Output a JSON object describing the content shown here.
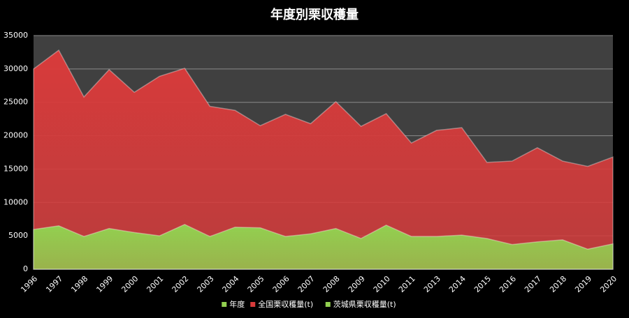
{
  "chart_data": {
    "type": "area",
    "title": "年度別栗収穫量",
    "categories": [
      "1996",
      "1997",
      "1998",
      "1999",
      "2000",
      "2001",
      "2002",
      "2003",
      "2004",
      "2005",
      "2006",
      "2007",
      "2008",
      "2009",
      "2010",
      "2011",
      "2013",
      "2014",
      "2015",
      "2016",
      "2017",
      "2018",
      "2019",
      "2020"
    ],
    "series": [
      {
        "name": "年度",
        "color": "#92d050",
        "values": [
          null,
          null,
          null,
          null,
          null,
          null,
          null,
          null,
          null,
          null,
          null,
          null,
          null,
          null,
          null,
          null,
          null,
          null,
          null,
          null,
          null,
          null,
          null,
          null
        ]
      },
      {
        "name": "全国栗収穫量(t)",
        "color": "#d83b3b",
        "values": [
          30000,
          32800,
          25800,
          29900,
          26500,
          28900,
          30100,
          24400,
          23800,
          21500,
          23200,
          21800,
          25100,
          21400,
          23300,
          18900,
          20800,
          21200,
          16000,
          16200,
          18200,
          16200,
          15400,
          16800
        ]
      },
      {
        "name": "茨城県栗収穫量(t)",
        "color": "#92d050",
        "values": [
          5950,
          6500,
          4900,
          6100,
          5500,
          5000,
          6700,
          4900,
          6300,
          6200,
          4900,
          5300,
          6100,
          4600,
          6600,
          4900,
          4900,
          5100,
          4600,
          3700,
          4100,
          4400,
          3000,
          3800
        ]
      }
    ],
    "ylim": [
      0,
      35000
    ],
    "yticks": [
      0,
      5000,
      10000,
      15000,
      20000,
      25000,
      30000,
      35000
    ],
    "grid": true,
    "legend": "bottom"
  }
}
